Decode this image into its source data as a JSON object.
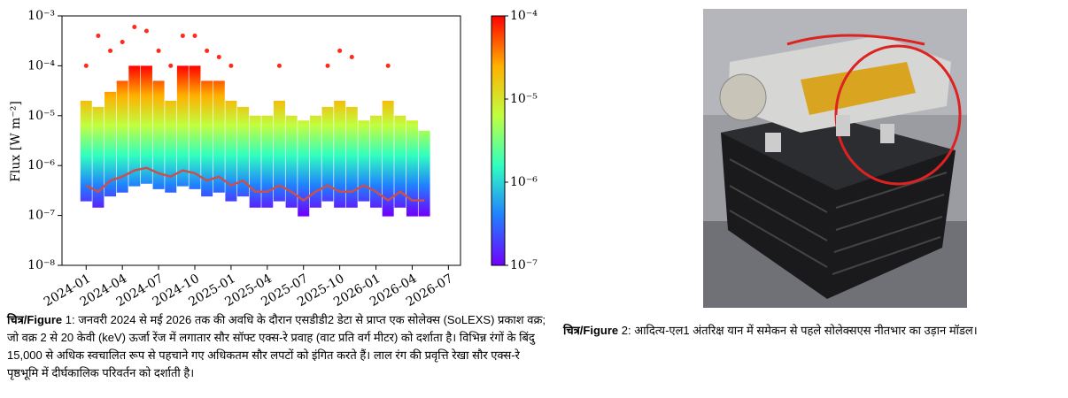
{
  "figure1": {
    "chart_data": {
      "type": "line",
      "ylabel": "Flux [W m⁻²]",
      "log_y": true,
      "xlim": [
        "2023-11",
        "2026-08"
      ],
      "xticks": [
        "2024-01",
        "2024-04",
        "2024-07",
        "2024-10",
        "2025-01",
        "2025-04",
        "2025-07",
        "2025-10",
        "2026-01",
        "2026-04",
        "2026-07"
      ],
      "ylim": [
        1e-08,
        0.001
      ],
      "yticks": [
        {
          "value": 1e-08,
          "label": "10⁻⁸"
        },
        {
          "value": 1e-07,
          "label": "10⁻⁷"
        },
        {
          "value": 1e-06,
          "label": "10⁻⁶"
        },
        {
          "value": 1e-05,
          "label": "10⁻⁵"
        },
        {
          "value": 0.0001,
          "label": "10⁻⁴"
        },
        {
          "value": 0.001,
          "label": "10⁻³"
        }
      ],
      "x": [
        "2024-01",
        "2024-02",
        "2024-03",
        "2024-04",
        "2024-05",
        "2024-06",
        "2024-07",
        "2024-08",
        "2024-09",
        "2024-10",
        "2024-11",
        "2024-12",
        "2025-01",
        "2025-02",
        "2025-03",
        "2025-04",
        "2025-05",
        "2025-06",
        "2025-07",
        "2025-08",
        "2025-09",
        "2025-10",
        "2025-11",
        "2025-12",
        "2026-01",
        "2026-02",
        "2026-03",
        "2026-04",
        "2026-05"
      ],
      "colormap": "rainbow",
      "colorbar": {
        "lim": [
          1e-07,
          0.0001
        ],
        "ticks": [
          {
            "value": 1e-07,
            "label": "10⁻⁷"
          },
          {
            "value": 1e-06,
            "label": "10⁻⁶"
          },
          {
            "value": 1e-05,
            "label": "10⁻⁵"
          },
          {
            "value": 0.0001,
            "label": "10⁻⁴"
          }
        ]
      },
      "series": [
        {
          "style": "band",
          "color": "colormap",
          "values": [
            2e-05,
            1.5e-05,
            3e-05,
            5e-05,
            0.0001,
            0.0001,
            5e-05,
            2e-05,
            0.0001,
            0.0001,
            5e-05,
            5e-05,
            2e-05,
            1.5e-05,
            1e-05,
            1e-05,
            2e-05,
            1e-05,
            8e-06,
            1e-05,
            1.5e-05,
            2e-05,
            1.5e-05,
            8e-06,
            1e-05,
            2e-05,
            1e-05,
            8e-06,
            5e-06
          ]
        },
        {
          "style": "line",
          "color": "#c8504f",
          "values": [
            4e-07,
            3e-07,
            5e-07,
            6e-07,
            8e-07,
            9e-07,
            7e-07,
            6e-07,
            8e-07,
            7e-07,
            5e-07,
            6e-07,
            4e-07,
            5e-07,
            3e-07,
            3e-07,
            4e-07,
            3e-07,
            2e-07,
            3e-07,
            4e-07,
            3e-07,
            3e-07,
            4e-07,
            3e-07,
            2e-07,
            3e-07,
            2e-07,
            2e-07
          ]
        },
        {
          "style": "markers",
          "color": "#ff2a1a",
          "values": [
            0.0001,
            0.0004,
            0.0002,
            0.0003,
            0.0006,
            0.0005,
            0.0002,
            0.0001,
            0.0004,
            0.0004,
            0.0002,
            0.00015,
            0.0001,
            null,
            null,
            null,
            0.0001,
            null,
            null,
            null,
            0.0001,
            0.0002,
            0.00015,
            null,
            null,
            0.0001,
            null,
            null,
            null
          ]
        }
      ]
    },
    "caption": {
      "label": "चित्र/Figure",
      "text": " 1: जनवरी 2024 से मई 2026 तक की अवधि के दौरान एसडीडी2 डेटा से प्राप्त एक सोलेक्स (SoLEXS) प्रकाश वक्र; जो वक्र 2 से 20 केवी (keV) ऊर्जा रेंज में लगातार सौर सॉफ्ट एक्स-रे प्रवाह (वाट प्रति वर्ग मीटर) को दर्शाता है। विभिन्न रंगों के बिंदु 15,000 से अधिक स्वचालित रूप से पहचाने गए अधिकतम सौर लपटों को इंगित करते हैं। लाल रंग की प्रवृत्ति रेखा सौर एक्स-रे पृष्ठभूमि में दीर्घकालिक परिवर्तन को दर्शाती है।"
    }
  },
  "figure2": {
    "caption": {
      "label": "चित्र/Figure",
      "text": " 2: आदित्य-एल1 अंतरिक्ष यान में समेकन से पहले सोलेक्सएस नीतभार  का उड़ान मॉडल।"
    }
  }
}
